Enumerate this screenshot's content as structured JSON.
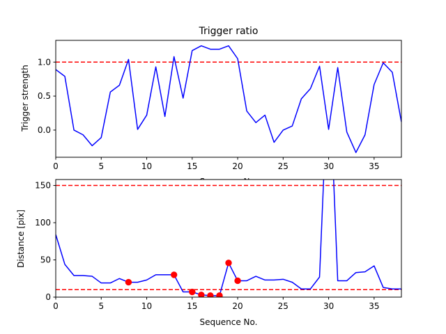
{
  "chart_data": [
    {
      "type": "line",
      "title": "Trigger ratio",
      "xlabel": "Sequence No.",
      "ylabel": "Trigger strength",
      "xlim": [
        0,
        38
      ],
      "ylim": [
        -0.4,
        1.32
      ],
      "xticks": [
        "0",
        "5",
        "10",
        "15",
        "20",
        "25",
        "30",
        "35"
      ],
      "yticks": [
        "0.0",
        "0.5",
        "1.0"
      ],
      "threshold_lines": [
        {
          "y": 1.0,
          "color": "#ff0000",
          "style": "dashed"
        }
      ],
      "series": [
        {
          "color": "#0000ff",
          "x": [
            0,
            1,
            2,
            3,
            4,
            5,
            6,
            7,
            8,
            9,
            10,
            11,
            12,
            13,
            14,
            15,
            16,
            17,
            18,
            19,
            20,
            21,
            22,
            23,
            24,
            25,
            26,
            27,
            28,
            29,
            30,
            31,
            32,
            33,
            34,
            35,
            36,
            37,
            38
          ],
          "values": [
            0.89,
            0.79,
            0.0,
            -0.07,
            -0.23,
            -0.11,
            0.56,
            0.66,
            1.04,
            0.01,
            0.22,
            0.93,
            0.2,
            1.08,
            0.47,
            1.17,
            1.24,
            1.19,
            1.19,
            1.24,
            1.05,
            0.28,
            0.11,
            0.22,
            -0.18,
            0.0,
            0.06,
            0.46,
            0.61,
            0.94,
            0.01,
            0.92,
            -0.03,
            -0.33,
            -0.07,
            0.67,
            0.99,
            0.85,
            0.12
          ]
        }
      ]
    },
    {
      "type": "line",
      "title": "",
      "xlabel": "Sequence No.",
      "ylabel": "Distance [pix]",
      "xlim": [
        0,
        38
      ],
      "ylim": [
        0,
        158
      ],
      "xticks": [
        "0",
        "5",
        "10",
        "15",
        "20",
        "25",
        "30",
        "35"
      ],
      "yticks": [
        "0",
        "50",
        "100",
        "150"
      ],
      "threshold_lines": [
        {
          "y": 150,
          "color": "#ff0000",
          "style": "dashed"
        },
        {
          "y": 10,
          "color": "#ff0000",
          "style": "dashed"
        }
      ],
      "series": [
        {
          "color": "#0000ff",
          "x": [
            0,
            1,
            2,
            3,
            4,
            5,
            6,
            7,
            8,
            9,
            10,
            11,
            12,
            13,
            14,
            15,
            16,
            17,
            18,
            19,
            20,
            21,
            22,
            23,
            24,
            25,
            26,
            27,
            28,
            29,
            29.45,
            30,
            30.55,
            31,
            32,
            33,
            34,
            35,
            36,
            37,
            38
          ],
          "values": [
            84,
            44,
            29,
            29,
            28,
            19,
            19,
            25,
            20,
            20,
            23,
            30,
            30,
            30,
            7,
            7,
            3,
            2,
            2,
            46,
            22,
            22,
            28,
            23,
            23,
            24,
            20,
            11,
            11,
            27,
            158,
            220,
            158,
            22,
            22,
            33,
            34,
            42,
            13,
            11,
            11
          ]
        },
        {
          "color": "#ff0000",
          "marker": "circle",
          "x": [
            8,
            13,
            15,
            16,
            17,
            18,
            19,
            20
          ],
          "values": [
            20,
            30,
            7,
            3,
            2,
            2,
            46,
            22
          ]
        }
      ]
    }
  ]
}
